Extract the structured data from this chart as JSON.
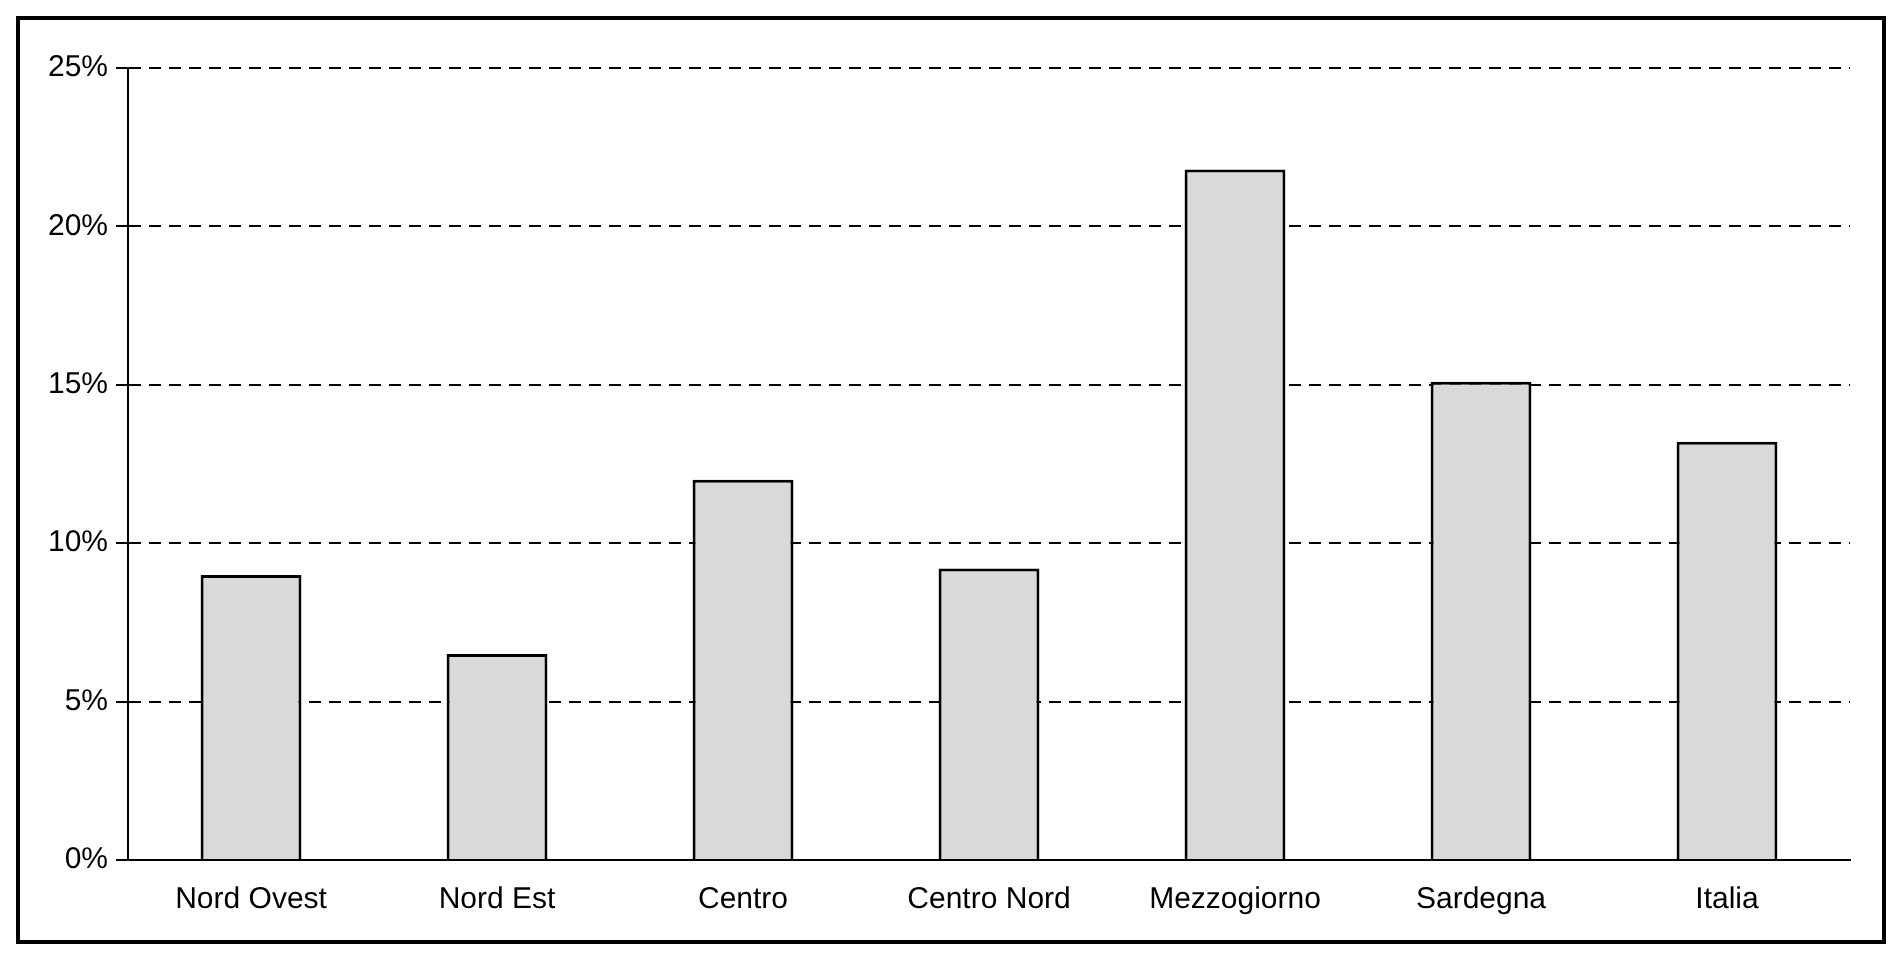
{
  "chart_data": {
    "type": "bar",
    "categories": [
      "Nord Ovest",
      "Nord Est",
      "Centro",
      "Centro Nord",
      "Mezzogiorno",
      "Sardegna",
      "Italia"
    ],
    "values": [
      9.0,
      6.5,
      12.0,
      9.2,
      21.8,
      15.1,
      13.2
    ],
    "color": "#d9d9d9",
    "ylim": [
      0,
      25
    ],
    "yticks": [
      {
        "value": 0,
        "label": "0%"
      },
      {
        "value": 5,
        "label": "5%"
      },
      {
        "value": 10,
        "label": "10%"
      },
      {
        "value": 15,
        "label": "15%"
      },
      {
        "value": 20,
        "label": "20%"
      },
      {
        "value": 25,
        "label": "25%"
      }
    ],
    "grid": "y",
    "legend": false
  }
}
